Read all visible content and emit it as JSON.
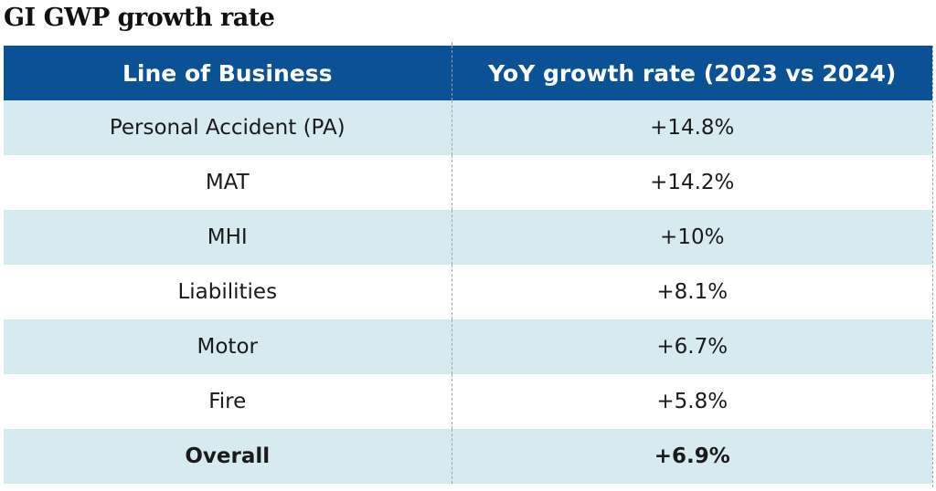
{
  "chart_data": {
    "type": "table",
    "title": "GI GWP growth rate",
    "columns": [
      "Line of Business",
      "YoY growth rate (2023 vs 2024)"
    ],
    "rows": [
      {
        "label": "Personal Accident (PA)",
        "value": "+14.8%",
        "alt": true
      },
      {
        "label": "MAT",
        "value": "+14.2%",
        "alt": false
      },
      {
        "label": "MHI",
        "value": "+10%",
        "alt": true
      },
      {
        "label": "Liabilities",
        "value": "+8.1%",
        "alt": false
      },
      {
        "label": "Motor",
        "value": "+6.7%",
        "alt": true
      },
      {
        "label": "Fire",
        "value": "+5.8%",
        "alt": false
      },
      {
        "label": "Overall",
        "value": "+6.9%",
        "alt": true,
        "total": true
      }
    ],
    "colors": {
      "header": "#0a5196",
      "header_text": "#ffffff",
      "alt_row": "#d6eaf0",
      "plain_row": "#ffffff"
    }
  }
}
